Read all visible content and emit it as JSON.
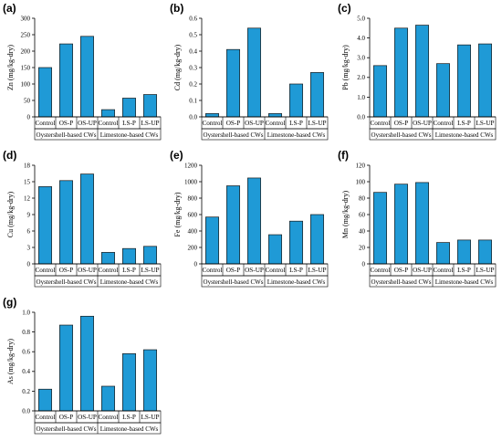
{
  "chart_data": [
    {
      "panel_label": "(a)",
      "type": "bar",
      "ylabel": "Zn (mg/kg-dry)",
      "ylim": [
        0,
        300
      ],
      "yticks": [
        "0",
        "50",
        "100",
        "150",
        "200",
        "250",
        "300"
      ],
      "categories": [
        "Control",
        "OS-P",
        "OS-UP",
        "Control",
        "LS-P",
        "LS-UP"
      ],
      "values": [
        150,
        222,
        245,
        22,
        57,
        68
      ],
      "groups": [
        "Oystershell-based CWs",
        "Limestone-based CWs"
      ]
    },
    {
      "panel_label": "(b)",
      "type": "bar",
      "ylabel": "Cd (mg/kg-dry)",
      "ylim": [
        0,
        0.6
      ],
      "yticks": [
        "0.0",
        "0.1",
        "0.2",
        "0.3",
        "0.4",
        "0.5",
        "0.6"
      ],
      "categories": [
        "Control",
        "OS-P",
        "OS-UP",
        "Control",
        "LS-P",
        "LS-UP"
      ],
      "values": [
        0.02,
        0.41,
        0.54,
        0.02,
        0.2,
        0.27
      ],
      "groups": [
        "Oystershell-based CWs",
        "Limestone-based CWs"
      ]
    },
    {
      "panel_label": "(c)",
      "type": "bar",
      "ylabel": "Pb (mg/kg-dry)",
      "ylim": [
        0,
        5
      ],
      "yticks": [
        "0.0",
        "1.0",
        "2.0",
        "3.0",
        "4.0",
        "5.0"
      ],
      "categories": [
        "Control",
        "OS-P",
        "OS-UP",
        "Control",
        "LS-P",
        "LS-UP"
      ],
      "values": [
        2.6,
        4.5,
        4.65,
        2.7,
        3.65,
        3.7
      ],
      "groups": [
        "Oystershell-based CWs",
        "Limestone-based CWs"
      ]
    },
    {
      "panel_label": "(d)",
      "type": "bar",
      "ylabel": "Cu (mg/kg-dry)",
      "ylim": [
        0,
        18
      ],
      "yticks": [
        "0",
        "3",
        "6",
        "9",
        "12",
        "15",
        "18"
      ],
      "categories": [
        "Control",
        "OS-P",
        "OS-UP",
        "Control",
        "LS-P",
        "LS-UP"
      ],
      "values": [
        14.1,
        15.2,
        16.4,
        2.1,
        2.8,
        3.2
      ],
      "groups": [
        "Oystershell-based CWs",
        "Limestone-based CWs"
      ]
    },
    {
      "panel_label": "(e)",
      "type": "bar",
      "ylabel": "Fe (mg/kg-dry)",
      "ylim": [
        0,
        1200
      ],
      "yticks": [
        "0",
        "200",
        "400",
        "600",
        "800",
        "1000",
        "1200"
      ],
      "categories": [
        "Control",
        "OS-P",
        "OS-UP",
        "Control",
        "LS-P",
        "LS-UP"
      ],
      "values": [
        570,
        950,
        1045,
        355,
        520,
        600
      ],
      "groups": [
        "Oystershell-based CWs",
        "Limestone-based CWs"
      ]
    },
    {
      "panel_label": "(f)",
      "type": "bar",
      "ylabel": "Mn (mg/kg-dry)",
      "ylim": [
        0,
        120
      ],
      "yticks": [
        "0",
        "20",
        "40",
        "60",
        "80",
        "100",
        "120"
      ],
      "categories": [
        "Control",
        "OS-P",
        "OS-UP",
        "Control",
        "LS-P",
        "LS-UP"
      ],
      "values": [
        87,
        97,
        99,
        26,
        29,
        29
      ],
      "groups": [
        "Oystershell-based CWs",
        "Limestone-based CWs"
      ]
    },
    {
      "panel_label": "(g)",
      "type": "bar",
      "ylabel": "As (mg/kg-dry)",
      "ylim": [
        0,
        1.0
      ],
      "yticks": [
        "0.0",
        "0.2",
        "0.4",
        "0.6",
        "0.8",
        "1.0"
      ],
      "categories": [
        "Control",
        "OS-P",
        "OS-UP",
        "Control",
        "LS-P",
        "LS-UP"
      ],
      "values": [
        0.22,
        0.87,
        0.96,
        0.25,
        0.58,
        0.62
      ],
      "groups": [
        "Oystershell-based CWs",
        "Limestone-based CWs"
      ]
    }
  ]
}
